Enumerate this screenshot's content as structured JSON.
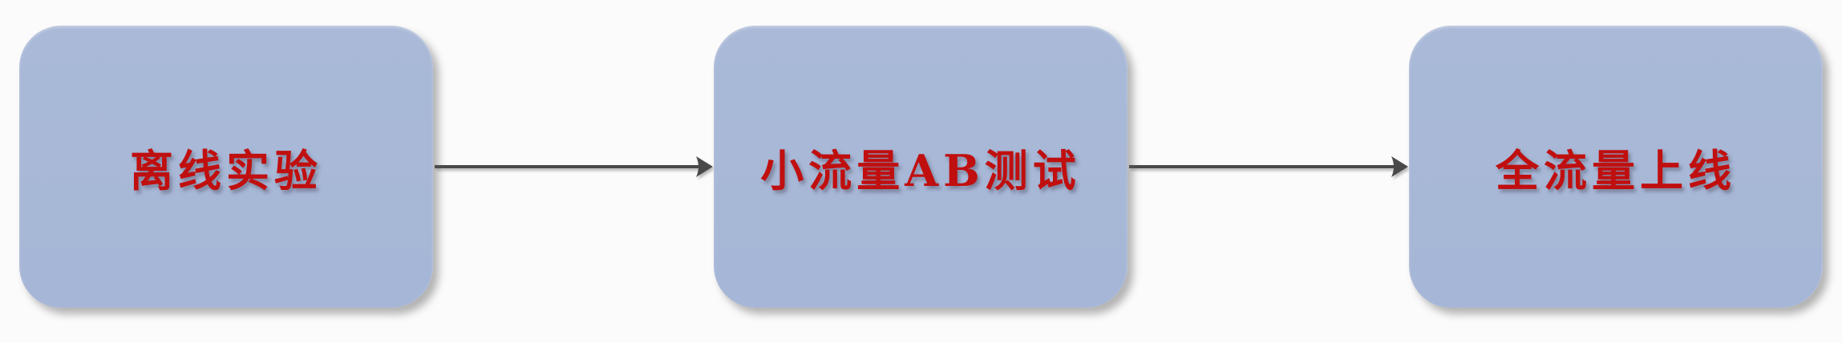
{
  "diagram": {
    "nodes": [
      {
        "id": "offline",
        "label": "离线实验"
      },
      {
        "id": "ab_test",
        "label": "小流量AB测试"
      },
      {
        "id": "full_launch",
        "label": "全流量上线"
      }
    ],
    "edges": [
      {
        "from": "offline",
        "to": "ab_test"
      },
      {
        "from": "ab_test",
        "to": "full_launch"
      }
    ],
    "colors": {
      "node_fill": "#a8b8d7",
      "label_text": "#c00f0f",
      "arrow": "#4a4a4a",
      "background": "#fcfbfb"
    }
  }
}
